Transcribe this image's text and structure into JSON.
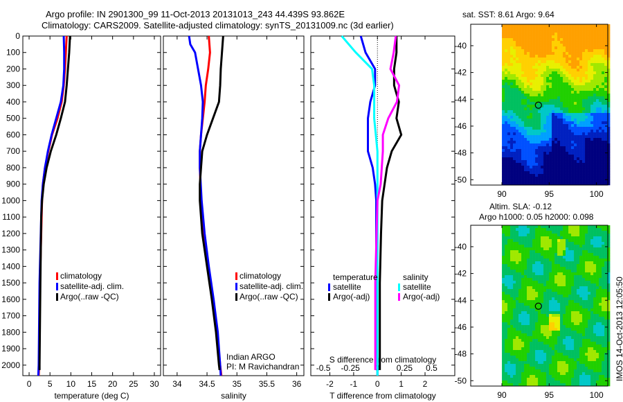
{
  "title_line1": "Argo profile: IN 2901300_99 11-Oct-2013 20131013_243 44.439S 93.862E",
  "title_line2": "Climatology: CARS2009. Satellite-adjusted climatology: synTS_20131009.nc (3d earlier)",
  "colors": {
    "climatology": "#ff0000",
    "satellite": "#0000ff",
    "argo": "#000000",
    "s_satellite": "#00ffff",
    "s_argo": "#ff00ff"
  },
  "chart_data": [
    {
      "type": "line",
      "title": "",
      "xlabel": "temperature (deg C)",
      "ylabel": "",
      "xlim": [
        -1.5,
        31.5
      ],
      "ylim": [
        2064,
        0
      ],
      "xticks": [
        0,
        5,
        10,
        15,
        20,
        25,
        30
      ],
      "yticks": [
        0,
        100,
        200,
        300,
        400,
        500,
        600,
        700,
        800,
        900,
        1000,
        1100,
        1200,
        1300,
        1400,
        1500,
        1600,
        1700,
        1800,
        1900,
        2000
      ],
      "legend": [
        "climatology",
        "satellite-adj. clim.",
        "Argo(..raw -QC)"
      ],
      "legend_placement": "lower-right",
      "series": [
        {
          "name": "climatology",
          "color": "#ff0000",
          "depth": [
            0,
            100,
            200,
            300,
            400,
            500,
            600,
            700,
            800,
            900,
            1000,
            1200,
            1500,
            2000,
            2064
          ],
          "values": [
            9.0,
            8.8,
            8.6,
            8.3,
            7.8,
            6.8,
            5.5,
            4.6,
            3.8,
            3.3,
            3.1,
            2.9,
            2.6,
            2.4,
            2.3
          ]
        },
        {
          "name": "satellite-adj. clim.",
          "color": "#0000ff",
          "depth": [
            0,
            100,
            200,
            300,
            400,
            500,
            600,
            700,
            800,
            900,
            1000,
            1200,
            1500,
            2000,
            2064
          ],
          "values": [
            8.3,
            8.4,
            8.4,
            8.2,
            7.6,
            6.5,
            5.4,
            4.5,
            3.8,
            3.3,
            3.0,
            2.8,
            2.5,
            2.3,
            2.2
          ]
        },
        {
          "name": "Argo(..raw -QC)",
          "color": "#000000",
          "depth": [
            0,
            100,
            200,
            300,
            400,
            500,
            600,
            700,
            800,
            900,
            1000,
            1100,
            1500,
            2000,
            2030
          ],
          "values": [
            9.8,
            9.6,
            9.3,
            9.0,
            8.6,
            7.6,
            6.5,
            5.2,
            4.2,
            3.5,
            3.1,
            2.9,
            2.7,
            2.5,
            2.5
          ]
        }
      ]
    },
    {
      "type": "line",
      "xlabel": "salinity",
      "xlim": [
        33.77,
        36.12
      ],
      "ylim": [
        2064,
        0
      ],
      "xticks": [
        34,
        34.5,
        35,
        35.5,
        36
      ],
      "legend": [
        "climatology",
        "satellite-adj. clim.",
        "Argo(..raw -QC)"
      ],
      "annotation": [
        "Indian ARGO",
        "PI: M Ravichandran"
      ],
      "series": [
        {
          "name": "climatology",
          "color": "#ff0000",
          "depth": [
            0,
            100,
            200,
            300,
            400,
            500,
            600,
            700,
            800,
            1000,
            1200,
            1400,
            1600,
            1800,
            2000,
            2064
          ],
          "values": [
            34.53,
            34.55,
            34.52,
            34.48,
            34.46,
            34.43,
            34.4,
            34.38,
            34.38,
            34.4,
            34.45,
            34.52,
            34.6,
            34.67,
            34.72,
            34.74
          ]
        },
        {
          "name": "satellite-adj. clim.",
          "color": "#0000ff",
          "depth": [
            0,
            50,
            100,
            200,
            300,
            400,
            500,
            600,
            700,
            800,
            1000,
            1200,
            1400,
            1600,
            1800,
            2000,
            2064
          ],
          "values": [
            34.2,
            34.22,
            34.3,
            34.35,
            34.4,
            34.43,
            34.42,
            34.4,
            34.38,
            34.38,
            34.41,
            34.46,
            34.53,
            34.61,
            34.68,
            34.72,
            34.73
          ]
        },
        {
          "name": "Argo(..raw -QC)",
          "color": "#000000",
          "depth": [
            0,
            100,
            200,
            300,
            400,
            500,
            600,
            700,
            800,
            900,
            1000,
            1200,
            1400,
            1600,
            1800,
            2000,
            2030
          ],
          "values": [
            34.77,
            34.75,
            34.73,
            34.72,
            34.7,
            34.6,
            34.5,
            34.42,
            34.4,
            34.38,
            34.38,
            34.42,
            34.5,
            34.58,
            34.65,
            34.7,
            34.71
          ]
        }
      ]
    },
    {
      "type": "line",
      "xlabel": "T difference from climatology",
      "x2label": "S difference from climatology",
      "xlim": [
        -2.8,
        3.25
      ],
      "ylim": [
        2064,
        0
      ],
      "xticks": [
        -2,
        -1,
        0,
        1,
        2
      ],
      "x2ticks": [
        -0.5,
        -0.25,
        0,
        0.25,
        0.5
      ],
      "s_scale": 4.55,
      "legend_headers": [
        "temperature",
        "salinity"
      ],
      "legend": [
        "satellite",
        "Argo(-adj)",
        "satellite",
        "Argo(-adj)"
      ],
      "series": [
        {
          "name": "T satellite",
          "color": "#0000ff",
          "var": "T",
          "depth": [
            0,
            100,
            200,
            300,
            400,
            500,
            600,
            700,
            800,
            900,
            1000,
            1500,
            2000,
            2064
          ],
          "values": [
            -0.7,
            -0.5,
            -0.1,
            -0.1,
            -0.3,
            -0.4,
            -0.4,
            -0.4,
            -0.2,
            -0.1,
            -0.05,
            -0.05,
            0,
            0
          ]
        },
        {
          "name": "T Argo(-adj)",
          "color": "#000000",
          "var": "T",
          "depth": [
            0,
            100,
            200,
            300,
            400,
            500,
            600,
            700,
            800,
            900,
            1000,
            1200,
            1500,
            2000,
            2030
          ],
          "values": [
            0.8,
            0.8,
            0.7,
            0.7,
            0.9,
            0.8,
            1.0,
            0.6,
            0.4,
            0.3,
            0.2,
            0.15,
            0.1,
            0.1,
            0.1
          ]
        },
        {
          "name": "S satellite",
          "color": "#00ffff",
          "var": "S",
          "depth": [
            0,
            100,
            200,
            300,
            500,
            700,
            1000,
            2000,
            2064
          ],
          "values": [
            -0.33,
            -0.2,
            -0.05,
            -0.03,
            -0.03,
            0,
            0,
            0,
            0
          ]
        },
        {
          "name": "S Argo(-adj)",
          "color": "#ff00ff",
          "var": "S",
          "depth": [
            0,
            100,
            200,
            300,
            400,
            500,
            600,
            700,
            800,
            900,
            1000,
            1500,
            2000,
            2030
          ],
          "values": [
            0.17,
            0.15,
            0.12,
            0.2,
            0.18,
            0.1,
            0.05,
            0.05,
            0.04,
            0.03,
            0,
            -0.02,
            -0.02,
            -0.02
          ]
        }
      ]
    }
  ],
  "map1": {
    "title": "sat. SST: 8.61  Argo: 9.64",
    "xticks": [
      90,
      95,
      100
    ],
    "yticks": [
      -40,
      -42,
      -44,
      -46,
      -48,
      -50
    ],
    "argo_lon": 93.862,
    "argo_lat": -44.439
  },
  "map2": {
    "title1": "Altim. SLA: -0.12",
    "title2": "Argo h1000: 0.05 h2000: 0.098",
    "xticks": [
      90,
      95,
      100
    ],
    "yticks": [
      -40,
      -42,
      -44,
      -46,
      -48,
      -50
    ]
  },
  "footer": "IMOS 14-Oct-2013 12:05:50"
}
